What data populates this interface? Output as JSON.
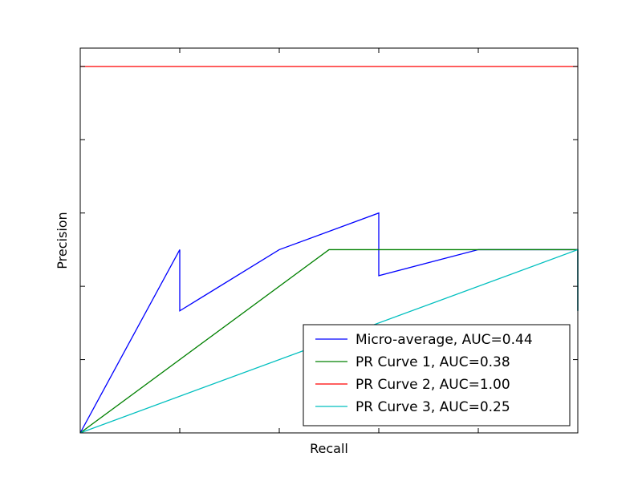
{
  "chart_data": {
    "type": "line",
    "title": "",
    "xlabel": "Recall",
    "ylabel": "Precision",
    "xlim": [
      0,
      1
    ],
    "ylim": [
      0,
      1.05
    ],
    "xticks": [
      0.2,
      0.4,
      0.6,
      0.8
    ],
    "yticks": [
      0.2,
      0.4,
      0.6,
      0.8,
      1.0
    ],
    "tick_labels_visible": false,
    "grid": false,
    "legend_position": "lower right",
    "series": [
      {
        "name": "Micro-average, AUC=0.44",
        "color": "#0000ff",
        "x": [
          0,
          0.2,
          0.2,
          0.4,
          0.6,
          0.6,
          0.8,
          1.0,
          1.0
        ],
        "y": [
          0,
          0.5,
          0.333,
          0.5,
          0.6,
          0.429,
          0.5,
          0.5,
          0.333
        ]
      },
      {
        "name": "PR Curve 1, AUC=0.38",
        "color": "#008000",
        "x": [
          0,
          0.5,
          1.0,
          1.0
        ],
        "y": [
          0,
          0.5,
          0.5,
          0.333
        ]
      },
      {
        "name": "PR Curve 2, AUC=1.00",
        "color": "#ff0000",
        "x": [
          0,
          1.0
        ],
        "y": [
          1.0,
          1.0
        ]
      },
      {
        "name": "PR Curve 3, AUC=0.25",
        "color": "#00bfbf",
        "x": [
          0,
          1.0,
          1.0
        ],
        "y": [
          0,
          0.5,
          0.333
        ]
      }
    ]
  }
}
